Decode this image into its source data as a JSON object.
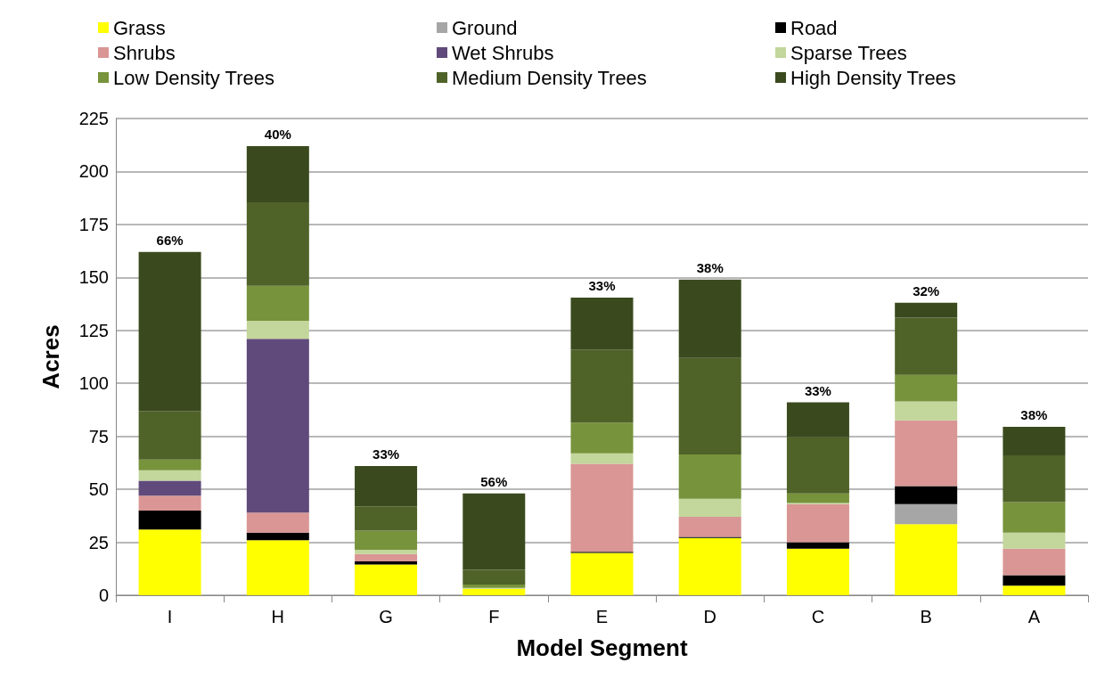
{
  "chart_data": {
    "type": "bar",
    "stacked": true,
    "xlabel": "Model Segment",
    "ylabel": "Acres",
    "categories": [
      "I",
      "H",
      "G",
      "F",
      "E",
      "D",
      "C",
      "B",
      "A"
    ],
    "series": [
      {
        "name": "Grass",
        "color": "#ffff00",
        "values": [
          31,
          26,
          14.5,
          3,
          20,
          27,
          22,
          33.5,
          4.5
        ]
      },
      {
        "name": "Ground",
        "color": "#a6a6a6",
        "values": [
          0,
          0,
          0,
          0,
          0,
          0,
          0,
          9.5,
          0
        ]
      },
      {
        "name": "Road",
        "color": "#000000",
        "values": [
          9,
          3.5,
          1.5,
          0,
          0.5,
          0.5,
          3,
          8.5,
          5
        ]
      },
      {
        "name": "Shrubs",
        "color": "#d99694",
        "values": [
          7,
          9.5,
          3.5,
          0,
          41.5,
          9.5,
          18,
          31,
          12.5
        ]
      },
      {
        "name": "Wet Shrubs",
        "color": "#604a7b",
        "values": [
          7,
          82,
          0,
          0,
          0,
          0,
          0,
          0,
          0
        ]
      },
      {
        "name": "Sparse Trees",
        "color": "#c3d69b",
        "values": [
          5,
          8.5,
          2,
          0.5,
          5,
          8.5,
          0.5,
          9,
          7.5
        ]
      },
      {
        "name": "Low Density Trees",
        "color": "#77933c",
        "values": [
          5,
          16.5,
          9,
          1.5,
          14.5,
          21,
          4.5,
          12.5,
          14.5
        ]
      },
      {
        "name": "Medium Density Trees",
        "color": "#4f6228",
        "values": [
          23,
          39.5,
          11.5,
          7,
          34.5,
          45.5,
          26.5,
          27,
          22
        ]
      },
      {
        "name": "High Density Trees",
        "color": "#3a4a1e",
        "values": [
          75,
          26.5,
          19,
          36,
          24.5,
          37,
          16.5,
          7,
          13.5
        ]
      }
    ],
    "annotations": [
      {
        "text": "66%",
        "x": "I",
        "y": 162
      },
      {
        "text": "40%",
        "x": "H",
        "y": 212
      },
      {
        "text": "33%",
        "x": "G",
        "y": 61
      },
      {
        "text": "56%",
        "x": "F",
        "y": 48
      },
      {
        "text": "33%",
        "x": "E",
        "y": 140.5
      },
      {
        "text": "38%",
        "x": "D",
        "y": 149
      },
      {
        "text": "33%",
        "x": "C",
        "y": 91
      },
      {
        "text": "32%",
        "x": "B",
        "y": 138
      },
      {
        "text": "38%",
        "x": "A",
        "y": 79.5
      }
    ],
    "ylim": [
      0,
      225
    ],
    "yticks": [
      0,
      25,
      50,
      75,
      100,
      125,
      150,
      175,
      200,
      225
    ],
    "grid": "y",
    "legend": "top"
  }
}
